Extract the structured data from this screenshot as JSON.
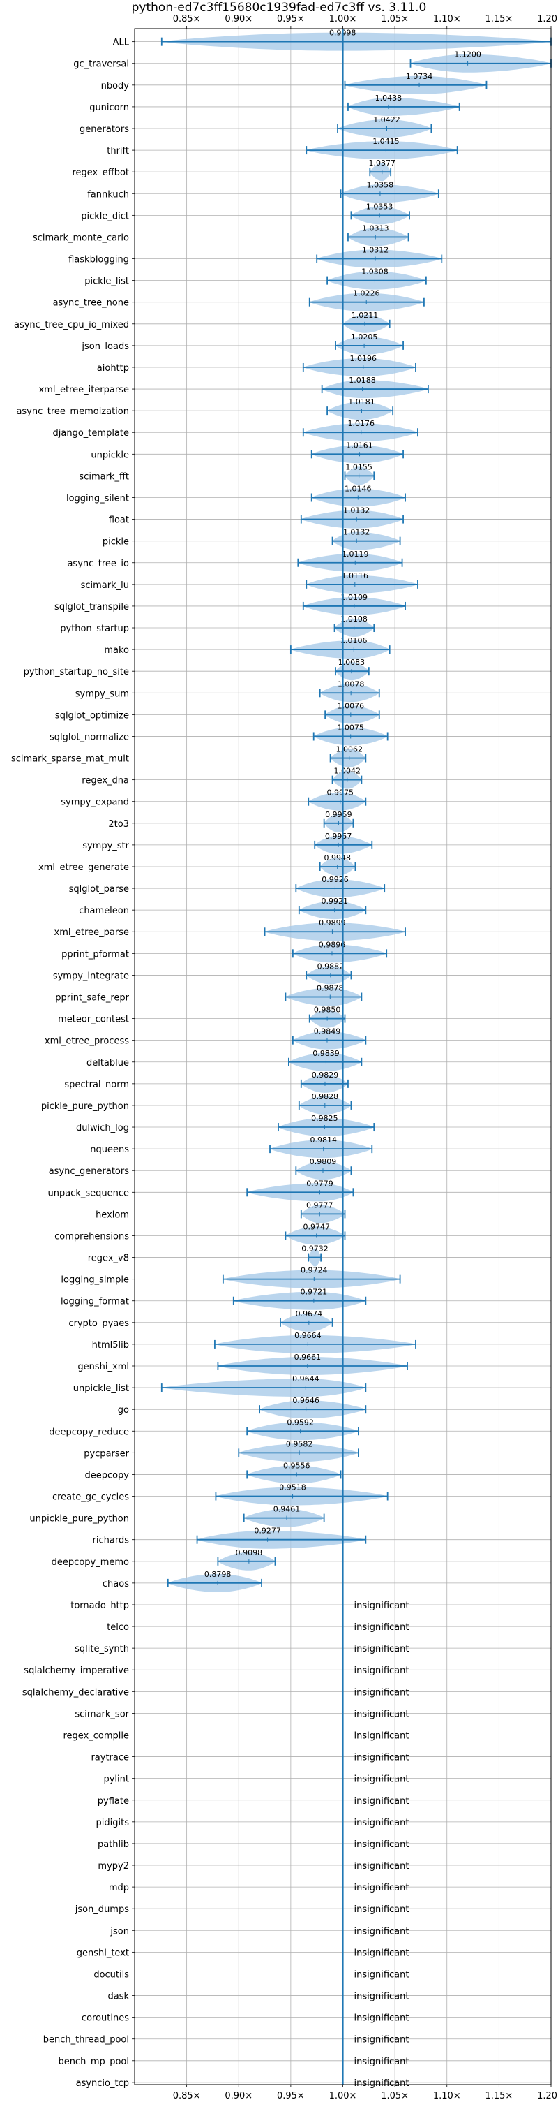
{
  "chart_data": {
    "type": "violin",
    "title": "python-ed7c3ff15680c1939fad-ed7c3ff vs. 3.11.0",
    "xlabel": "",
    "ylabel": "",
    "xlim": [
      0.8,
      1.2
    ],
    "xticks": [
      0.85,
      0.9,
      0.95,
      1.0,
      1.05,
      1.1,
      1.15,
      1.2
    ],
    "xtick_labels": [
      "0.85×",
      "0.90×",
      "0.95×",
      "1.00×",
      "1.05×",
      "1.10×",
      "1.15×",
      "1.20×"
    ],
    "grid": true,
    "reference_line": 1.0,
    "insignificant_label": "insignificant",
    "colors": {
      "violin": "#a9cbe8",
      "line": "#1f77b4",
      "grid": "#b0b0b0",
      "text": "#000000"
    },
    "benchmarks": [
      {
        "name": "ALL",
        "value": 0.9998,
        "min": 0.826,
        "max": 1.2
      },
      {
        "name": "gc_traversal",
        "value": 1.12,
        "min": 1.065,
        "max": 1.2
      },
      {
        "name": "nbody",
        "value": 1.0734,
        "min": 1.002,
        "max": 1.138
      },
      {
        "name": "gunicorn",
        "value": 1.0438,
        "min": 1.005,
        "max": 1.112
      },
      {
        "name": "generators",
        "value": 1.0422,
        "min": 0.995,
        "max": 1.085
      },
      {
        "name": "thrift",
        "value": 1.0415,
        "min": 0.965,
        "max": 1.11
      },
      {
        "name": "regex_effbot",
        "value": 1.0377,
        "min": 1.026,
        "max": 1.046
      },
      {
        "name": "fannkuch",
        "value": 1.0358,
        "min": 0.998,
        "max": 1.092
      },
      {
        "name": "pickle_dict",
        "value": 1.0353,
        "min": 1.008,
        "max": 1.064
      },
      {
        "name": "scimark_monte_carlo",
        "value": 1.0313,
        "min": 1.005,
        "max": 1.063
      },
      {
        "name": "flaskblogging",
        "value": 1.0312,
        "min": 0.975,
        "max": 1.095
      },
      {
        "name": "pickle_list",
        "value": 1.0308,
        "min": 0.985,
        "max": 1.08
      },
      {
        "name": "async_tree_none",
        "value": 1.0226,
        "min": 0.968,
        "max": 1.078
      },
      {
        "name": "async_tree_cpu_io_mixed",
        "value": 1.0211,
        "min": 1.0,
        "max": 1.045
      },
      {
        "name": "json_loads",
        "value": 1.0205,
        "min": 0.993,
        "max": 1.058
      },
      {
        "name": "aiohttp",
        "value": 1.0196,
        "min": 0.962,
        "max": 1.07
      },
      {
        "name": "xml_etree_iterparse",
        "value": 1.0188,
        "min": 0.98,
        "max": 1.082
      },
      {
        "name": "async_tree_memoization",
        "value": 1.0181,
        "min": 0.985,
        "max": 1.048
      },
      {
        "name": "django_template",
        "value": 1.0176,
        "min": 0.962,
        "max": 1.072
      },
      {
        "name": "unpickle",
        "value": 1.0161,
        "min": 0.97,
        "max": 1.058
      },
      {
        "name": "scimark_fft",
        "value": 1.0155,
        "min": 1.002,
        "max": 1.03
      },
      {
        "name": "logging_silent",
        "value": 1.0146,
        "min": 0.97,
        "max": 1.06
      },
      {
        "name": "float",
        "value": 1.0132,
        "min": 0.96,
        "max": 1.058
      },
      {
        "name": "pickle",
        "value": 1.0132,
        "min": 0.99,
        "max": 1.055
      },
      {
        "name": "async_tree_io",
        "value": 1.0119,
        "min": 0.957,
        "max": 1.057
      },
      {
        "name": "scimark_lu",
        "value": 1.0116,
        "min": 0.965,
        "max": 1.072
      },
      {
        "name": "sqlglot_transpile",
        "value": 1.0109,
        "min": 0.962,
        "max": 1.06
      },
      {
        "name": "python_startup",
        "value": 1.0108,
        "min": 0.992,
        "max": 1.03
      },
      {
        "name": "mako",
        "value": 1.0106,
        "min": 0.95,
        "max": 1.045
      },
      {
        "name": "python_startup_no_site",
        "value": 1.0083,
        "min": 0.993,
        "max": 1.025
      },
      {
        "name": "sympy_sum",
        "value": 1.0078,
        "min": 0.978,
        "max": 1.035
      },
      {
        "name": "sqlglot_optimize",
        "value": 1.0076,
        "min": 0.983,
        "max": 1.035
      },
      {
        "name": "sqlglot_normalize",
        "value": 1.0075,
        "min": 0.972,
        "max": 1.043
      },
      {
        "name": "scimark_sparse_mat_mult",
        "value": 1.0062,
        "min": 0.988,
        "max": 1.022
      },
      {
        "name": "regex_dna",
        "value": 1.0042,
        "min": 0.99,
        "max": 1.018
      },
      {
        "name": "sympy_expand",
        "value": 0.9975,
        "min": 0.967,
        "max": 1.022
      },
      {
        "name": "2to3",
        "value": 0.9959,
        "min": 0.982,
        "max": 1.01
      },
      {
        "name": "sympy_str",
        "value": 0.9957,
        "min": 0.973,
        "max": 1.028
      },
      {
        "name": "xml_etree_generate",
        "value": 0.9948,
        "min": 0.978,
        "max": 1.012
      },
      {
        "name": "sqlglot_parse",
        "value": 0.9926,
        "min": 0.955,
        "max": 1.04
      },
      {
        "name": "chameleon",
        "value": 0.9921,
        "min": 0.958,
        "max": 1.022
      },
      {
        "name": "xml_etree_parse",
        "value": 0.9899,
        "min": 0.925,
        "max": 1.06
      },
      {
        "name": "pprint_pformat",
        "value": 0.9896,
        "min": 0.952,
        "max": 1.042
      },
      {
        "name": "sympy_integrate",
        "value": 0.9882,
        "min": 0.965,
        "max": 1.008
      },
      {
        "name": "pprint_safe_repr",
        "value": 0.9878,
        "min": 0.945,
        "max": 1.018
      },
      {
        "name": "meteor_contest",
        "value": 0.985,
        "min": 0.968,
        "max": 1.002
      },
      {
        "name": "xml_etree_process",
        "value": 0.9849,
        "min": 0.952,
        "max": 1.022
      },
      {
        "name": "deltablue",
        "value": 0.9839,
        "min": 0.948,
        "max": 1.018
      },
      {
        "name": "spectral_norm",
        "value": 0.9829,
        "min": 0.96,
        "max": 1.005
      },
      {
        "name": "pickle_pure_python",
        "value": 0.9828,
        "min": 0.958,
        "max": 1.008
      },
      {
        "name": "dulwich_log",
        "value": 0.9825,
        "min": 0.938,
        "max": 1.03
      },
      {
        "name": "nqueens",
        "value": 0.9814,
        "min": 0.93,
        "max": 1.028
      },
      {
        "name": "async_generators",
        "value": 0.9809,
        "min": 0.955,
        "max": 1.008
      },
      {
        "name": "unpack_sequence",
        "value": 0.9779,
        "min": 0.908,
        "max": 1.01
      },
      {
        "name": "hexiom",
        "value": 0.9777,
        "min": 0.96,
        "max": 1.002
      },
      {
        "name": "comprehensions",
        "value": 0.9747,
        "min": 0.945,
        "max": 1.002
      },
      {
        "name": "regex_v8",
        "value": 0.9732,
        "min": 0.967,
        "max": 0.979
      },
      {
        "name": "logging_simple",
        "value": 0.9724,
        "min": 0.885,
        "max": 1.055
      },
      {
        "name": "logging_format",
        "value": 0.9721,
        "min": 0.895,
        "max": 1.022
      },
      {
        "name": "crypto_pyaes",
        "value": 0.9674,
        "min": 0.94,
        "max": 0.99
      },
      {
        "name": "html5lib",
        "value": 0.9664,
        "min": 0.877,
        "max": 1.07
      },
      {
        "name": "genshi_xml",
        "value": 0.9661,
        "min": 0.88,
        "max": 1.062
      },
      {
        "name": "unpickle_list",
        "value": 0.9644,
        "min": 0.826,
        "max": 1.022
      },
      {
        "name": "go",
        "value": 0.9646,
        "min": 0.92,
        "max": 1.022
      },
      {
        "name": "deepcopy_reduce",
        "value": 0.9592,
        "min": 0.908,
        "max": 1.015
      },
      {
        "name": "pycparser",
        "value": 0.9582,
        "min": 0.9,
        "max": 1.015
      },
      {
        "name": "deepcopy",
        "value": 0.9556,
        "min": 0.908,
        "max": 0.998
      },
      {
        "name": "create_gc_cycles",
        "value": 0.9518,
        "min": 0.878,
        "max": 1.043
      },
      {
        "name": "unpickle_pure_python",
        "value": 0.9461,
        "min": 0.905,
        "max": 0.982
      },
      {
        "name": "richards",
        "value": 0.9277,
        "min": 0.86,
        "max": 1.022
      },
      {
        "name": "deepcopy_memo",
        "value": 0.9098,
        "min": 0.88,
        "max": 0.935
      },
      {
        "name": "chaos",
        "value": 0.8798,
        "min": 0.832,
        "max": 0.922
      },
      {
        "name": "tornado_http",
        "value": null
      },
      {
        "name": "telco",
        "value": null
      },
      {
        "name": "sqlite_synth",
        "value": null
      },
      {
        "name": "sqlalchemy_imperative",
        "value": null
      },
      {
        "name": "sqlalchemy_declarative",
        "value": null
      },
      {
        "name": "scimark_sor",
        "value": null
      },
      {
        "name": "regex_compile",
        "value": null
      },
      {
        "name": "raytrace",
        "value": null
      },
      {
        "name": "pylint",
        "value": null
      },
      {
        "name": "pyflate",
        "value": null
      },
      {
        "name": "pidigits",
        "value": null
      },
      {
        "name": "pathlib",
        "value": null
      },
      {
        "name": "mypy2",
        "value": null
      },
      {
        "name": "mdp",
        "value": null
      },
      {
        "name": "json_dumps",
        "value": null
      },
      {
        "name": "json",
        "value": null
      },
      {
        "name": "genshi_text",
        "value": null
      },
      {
        "name": "docutils",
        "value": null
      },
      {
        "name": "dask",
        "value": null
      },
      {
        "name": "coroutines",
        "value": null
      },
      {
        "name": "bench_thread_pool",
        "value": null
      },
      {
        "name": "bench_mp_pool",
        "value": null
      },
      {
        "name": "asyncio_tcp",
        "value": null
      }
    ]
  }
}
